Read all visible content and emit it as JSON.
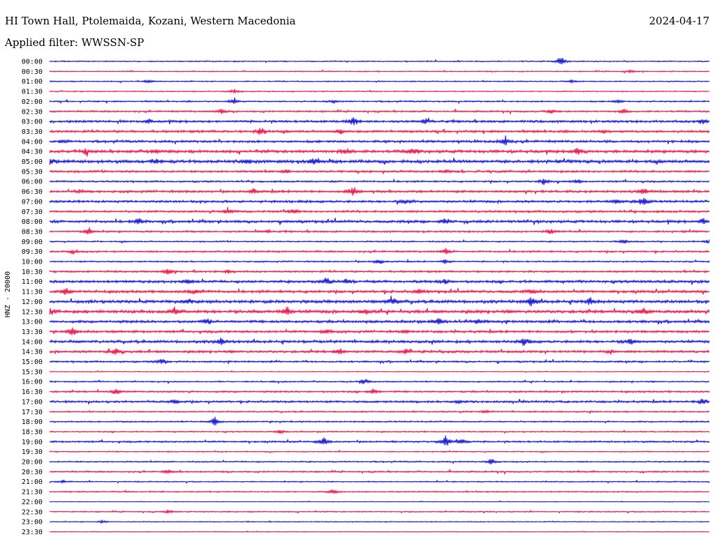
{
  "header": {
    "station": "HI Town Hall, Ptolemaida, Kozani, Western Macedonia",
    "date": "2024-04-17",
    "filter_label": "Applied filter: WWSSN-SP"
  },
  "chart_data": {
    "type": "line",
    "title": "",
    "ylabel": "HNZ - 20000",
    "xlabel": "",
    "grid": false,
    "legend": false,
    "colors": [
      "#0000d0",
      "#e8003c"
    ],
    "rows": [
      {
        "label": "00:00",
        "activity": 1.0,
        "events": [
          [
            0.775,
            9
          ]
        ]
      },
      {
        "label": "00:30",
        "activity": 0.9,
        "events": [
          [
            0.88,
            3
          ]
        ]
      },
      {
        "label": "01:00",
        "activity": 1.0,
        "events": [
          [
            0.15,
            3
          ],
          [
            0.79,
            3
          ]
        ]
      },
      {
        "label": "01:30",
        "activity": 0.9,
        "events": [
          [
            0.28,
            4
          ]
        ]
      },
      {
        "label": "02:00",
        "activity": 1.3,
        "events": [
          [
            0.28,
            6
          ],
          [
            0.43,
            3
          ],
          [
            0.86,
            3
          ]
        ]
      },
      {
        "label": "02:30",
        "activity": 1.4,
        "events": [
          [
            0.26,
            4
          ],
          [
            0.76,
            4
          ],
          [
            0.87,
            5
          ]
        ]
      },
      {
        "label": "03:00",
        "activity": 2.0,
        "events": [
          [
            0.15,
            3
          ],
          [
            0.46,
            8
          ],
          [
            0.57,
            5
          ],
          [
            0.99,
            5
          ]
        ]
      },
      {
        "label": "03:30",
        "activity": 2.0,
        "events": [
          [
            0.32,
            8
          ],
          [
            0.44,
            4
          ],
          [
            0.84,
            3
          ]
        ]
      },
      {
        "label": "04:00",
        "activity": 2.0,
        "events": [
          [
            0.02,
            3
          ],
          [
            0.69,
            9
          ]
        ]
      },
      {
        "label": "04:30",
        "activity": 2.4,
        "events": [
          [
            0.055,
            5
          ],
          [
            0.16,
            5
          ],
          [
            0.45,
            5
          ],
          [
            0.55,
            6
          ],
          [
            0.8,
            7
          ]
        ]
      },
      {
        "label": "05:00",
        "activity": 2.6,
        "events": [
          [
            0.0,
            7
          ],
          [
            0.16,
            6
          ],
          [
            0.3,
            4
          ],
          [
            0.4,
            5
          ]
        ]
      },
      {
        "label": "05:30",
        "activity": 1.8,
        "events": [
          [
            0.36,
            4
          ],
          [
            0.6,
            3
          ]
        ]
      },
      {
        "label": "06:00",
        "activity": 1.5,
        "events": [
          [
            0.75,
            7
          ],
          [
            0.8,
            4
          ]
        ]
      },
      {
        "label": "06:30",
        "activity": 2.0,
        "events": [
          [
            0.045,
            3
          ],
          [
            0.31,
            4
          ],
          [
            0.46,
            9
          ],
          [
            0.9,
            6
          ]
        ]
      },
      {
        "label": "07:00",
        "activity": 2.0,
        "events": [
          [
            0.54,
            4
          ],
          [
            0.86,
            6
          ],
          [
            0.9,
            8
          ]
        ]
      },
      {
        "label": "07:30",
        "activity": 1.8,
        "events": [
          [
            0.27,
            6
          ],
          [
            0.37,
            4
          ]
        ]
      },
      {
        "label": "08:00",
        "activity": 2.2,
        "events": [
          [
            0.135,
            6
          ],
          [
            0.6,
            6
          ],
          [
            0.99,
            5
          ]
        ]
      },
      {
        "label": "08:30",
        "activity": 1.5,
        "events": [
          [
            0.06,
            6
          ],
          [
            0.33,
            3
          ],
          [
            0.76,
            5
          ]
        ]
      },
      {
        "label": "09:00",
        "activity": 1.2,
        "events": [
          [
            0.87,
            5
          ],
          [
            1.0,
            4
          ]
        ]
      },
      {
        "label": "09:30",
        "activity": 1.5,
        "events": [
          [
            0.035,
            5
          ],
          [
            0.6,
            5
          ]
        ]
      },
      {
        "label": "10:00",
        "activity": 1.3,
        "events": [
          [
            0.5,
            5
          ],
          [
            0.6,
            4
          ]
        ]
      },
      {
        "label": "10:30",
        "activity": 1.6,
        "events": [
          [
            0.18,
            6
          ],
          [
            0.27,
            3
          ]
        ]
      },
      {
        "label": "11:00",
        "activity": 2.2,
        "events": [
          [
            0.21,
            5
          ],
          [
            0.42,
            6
          ],
          [
            0.45,
            4
          ],
          [
            0.6,
            4
          ]
        ]
      },
      {
        "label": "11:30",
        "activity": 2.2,
        "events": [
          [
            0.025,
            6
          ],
          [
            0.22,
            6
          ],
          [
            0.56,
            4
          ],
          [
            0.73,
            4
          ]
        ]
      },
      {
        "label": "12:00",
        "activity": 2.5,
        "events": [
          [
            0.21,
            5
          ],
          [
            0.52,
            8
          ],
          [
            0.73,
            8
          ],
          [
            0.82,
            6
          ]
        ]
      },
      {
        "label": "12:30",
        "activity": 2.6,
        "events": [
          [
            0.0,
            7
          ],
          [
            0.19,
            8
          ],
          [
            0.36,
            8
          ],
          [
            0.48,
            5
          ],
          [
            0.9,
            6
          ]
        ]
      },
      {
        "label": "13:00",
        "activity": 2.2,
        "events": [
          [
            0.24,
            5
          ],
          [
            0.59,
            6
          ],
          [
            0.65,
            4
          ]
        ]
      },
      {
        "label": "13:30",
        "activity": 2.0,
        "events": [
          [
            0.035,
            9
          ],
          [
            0.42,
            6
          ],
          [
            0.54,
            3
          ]
        ]
      },
      {
        "label": "14:00",
        "activity": 2.2,
        "events": [
          [
            0.26,
            6
          ],
          [
            0.72,
            7
          ],
          [
            0.88,
            6
          ]
        ]
      },
      {
        "label": "14:30",
        "activity": 2.0,
        "events": [
          [
            0.1,
            7
          ],
          [
            0.44,
            7
          ],
          [
            0.54,
            5
          ],
          [
            0.85,
            4
          ]
        ]
      },
      {
        "label": "15:00",
        "activity": 1.5,
        "events": [
          [
            0.17,
            5
          ]
        ]
      },
      {
        "label": "15:30",
        "activity": 0.7,
        "events": []
      },
      {
        "label": "16:00",
        "activity": 1.2,
        "events": [
          [
            0.475,
            6
          ]
        ]
      },
      {
        "label": "16:30",
        "activity": 1.5,
        "events": [
          [
            0.1,
            6
          ],
          [
            0.49,
            6
          ]
        ]
      },
      {
        "label": "17:00",
        "activity": 1.8,
        "events": [
          [
            0.19,
            5
          ],
          [
            0.62,
            4
          ],
          [
            0.99,
            7
          ]
        ]
      },
      {
        "label": "17:30",
        "activity": 1.2,
        "events": [
          [
            0.66,
            3
          ]
        ]
      },
      {
        "label": "18:00",
        "activity": 1.3,
        "events": [
          [
            0.25,
            8
          ]
        ]
      },
      {
        "label": "18:30",
        "activity": 1.1,
        "events": [
          [
            0.35,
            4
          ]
        ]
      },
      {
        "label": "19:00",
        "activity": 1.5,
        "events": [
          [
            0.415,
            8
          ],
          [
            0.6,
            12
          ],
          [
            0.625,
            6
          ]
        ]
      },
      {
        "label": "19:30",
        "activity": 0.9,
        "events": []
      },
      {
        "label": "20:00",
        "activity": 1.2,
        "events": [
          [
            0.67,
            7
          ]
        ]
      },
      {
        "label": "20:30",
        "activity": 1.3,
        "events": [
          [
            0.18,
            4
          ]
        ]
      },
      {
        "label": "21:00",
        "activity": 1.0,
        "events": [
          [
            0.02,
            3
          ]
        ]
      },
      {
        "label": "21:30",
        "activity": 1.1,
        "events": [
          [
            0.43,
            5
          ]
        ]
      },
      {
        "label": "22:00",
        "activity": 0.6,
        "events": []
      },
      {
        "label": "22:30",
        "activity": 1.0,
        "events": [
          [
            0.18,
            4
          ]
        ]
      },
      {
        "label": "23:00",
        "activity": 0.8,
        "events": [
          [
            0.08,
            3
          ]
        ]
      },
      {
        "label": "23:30",
        "activity": 0.7,
        "events": []
      }
    ]
  }
}
